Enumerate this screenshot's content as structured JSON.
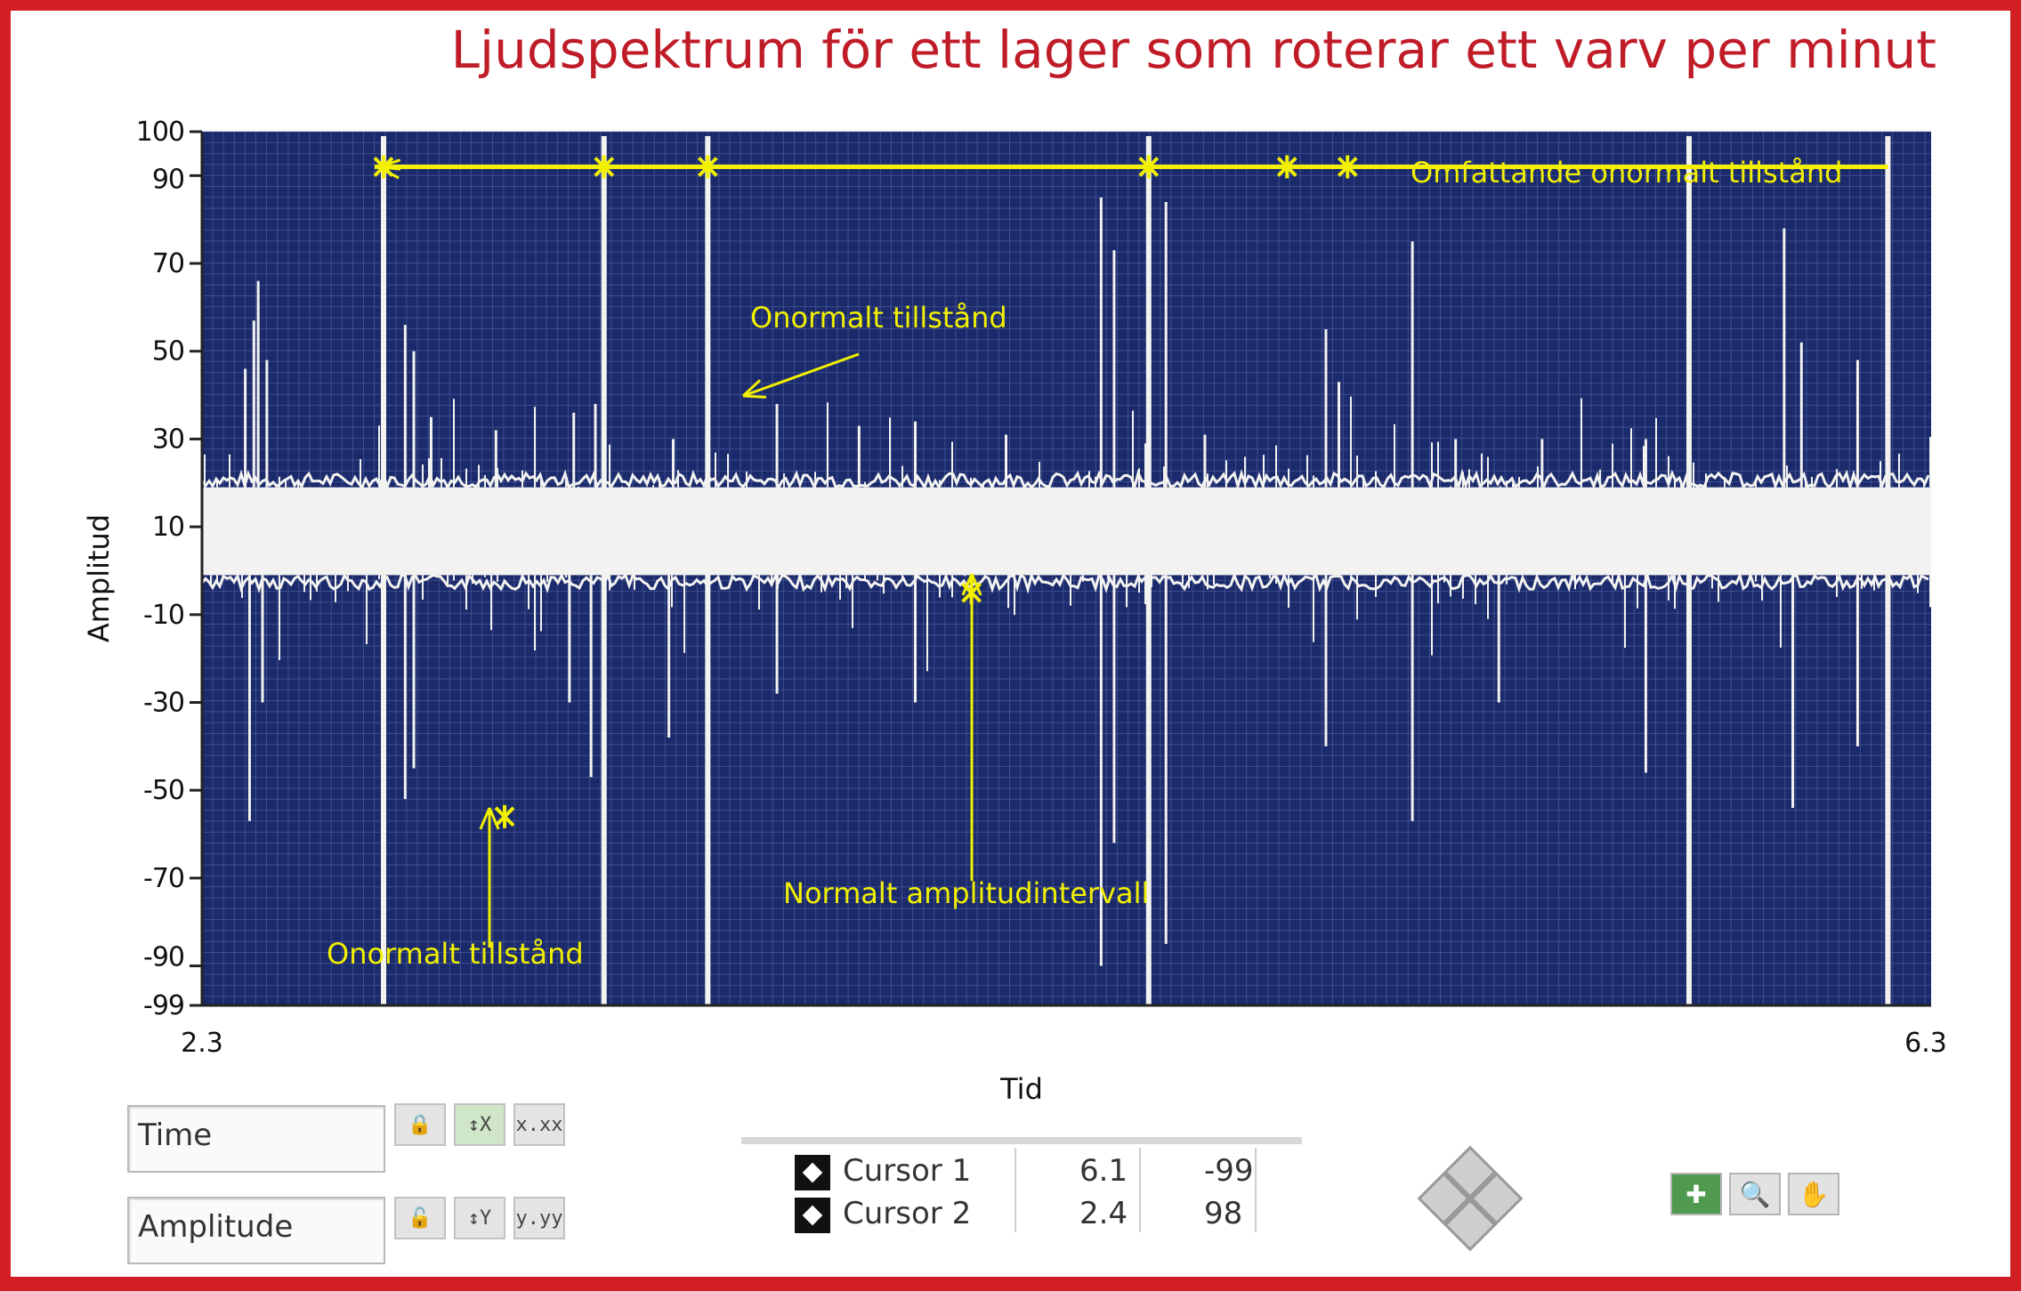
{
  "title": "Ljudspektrum för ett lager som roterar ett varv per minut",
  "chart_data": {
    "type": "line",
    "xlabel": "Tid",
    "ylabel": "Amplitud",
    "xlim": [
      2.3,
      6.3
    ],
    "ylim": [
      -99,
      100
    ],
    "x_ticks": [
      "2.3",
      "6.3"
    ],
    "y_ticks": [
      100,
      90,
      70,
      50,
      30,
      10,
      -10,
      -30,
      -50,
      -70,
      -90,
      -99
    ],
    "grid": true,
    "colors": {
      "plot_bg": "#1b2a6b",
      "grid": "#5a6aa8",
      "signal": "#f2f2f0",
      "annotation": "#f2f000"
    },
    "normal_band": [
      -1,
      19
    ],
    "full_spikes": [
      2.72,
      3.23,
      3.47,
      4.49,
      5.74,
      6.2
    ],
    "peak_spikes": [
      {
        "x": 2.4,
        "y": 46
      },
      {
        "x": 2.42,
        "y": 57
      },
      {
        "x": 2.43,
        "y": 66
      },
      {
        "x": 2.45,
        "y": 48
      },
      {
        "x": 2.77,
        "y": 56
      },
      {
        "x": 2.79,
        "y": 50
      },
      {
        "x": 2.83,
        "y": 35
      },
      {
        "x": 2.98,
        "y": 32
      },
      {
        "x": 3.16,
        "y": 36
      },
      {
        "x": 3.21,
        "y": 38
      },
      {
        "x": 3.39,
        "y": 30
      },
      {
        "x": 3.63,
        "y": 38
      },
      {
        "x": 3.82,
        "y": 33
      },
      {
        "x": 3.95,
        "y": 34
      },
      {
        "x": 4.16,
        "y": 31
      },
      {
        "x": 4.38,
        "y": 85
      },
      {
        "x": 4.41,
        "y": 73
      },
      {
        "x": 4.53,
        "y": 84
      },
      {
        "x": 4.62,
        "y": 31
      },
      {
        "x": 4.9,
        "y": 55
      },
      {
        "x": 4.93,
        "y": 43
      },
      {
        "x": 5.1,
        "y": 75
      },
      {
        "x": 5.2,
        "y": 30
      },
      {
        "x": 5.4,
        "y": 30
      },
      {
        "x": 5.64,
        "y": 30
      },
      {
        "x": 5.96,
        "y": 78
      },
      {
        "x": 6.0,
        "y": 52
      },
      {
        "x": 6.13,
        "y": 48
      }
    ],
    "trough_spikes": [
      {
        "x": 2.41,
        "y": -57
      },
      {
        "x": 2.44,
        "y": -30
      },
      {
        "x": 2.77,
        "y": -52
      },
      {
        "x": 2.79,
        "y": -45
      },
      {
        "x": 3.15,
        "y": -30
      },
      {
        "x": 3.2,
        "y": -47
      },
      {
        "x": 3.38,
        "y": -38
      },
      {
        "x": 3.63,
        "y": -28
      },
      {
        "x": 3.95,
        "y": -30
      },
      {
        "x": 4.38,
        "y": -90
      },
      {
        "x": 4.41,
        "y": -62
      },
      {
        "x": 4.53,
        "y": -85
      },
      {
        "x": 4.9,
        "y": -40
      },
      {
        "x": 5.1,
        "y": -57
      },
      {
        "x": 5.3,
        "y": -30
      },
      {
        "x": 5.64,
        "y": -46
      },
      {
        "x": 5.98,
        "y": -54
      },
      {
        "x": 6.13,
        "y": -40
      }
    ],
    "markers": [
      {
        "x": 2.72,
        "y": 92
      },
      {
        "x": 3.23,
        "y": 92
      },
      {
        "x": 3.47,
        "y": 92
      },
      {
        "x": 4.49,
        "y": 92
      },
      {
        "x": 4.81,
        "y": 92
      },
      {
        "x": 4.95,
        "y": 92
      },
      {
        "x": 3.0,
        "y": -56
      },
      {
        "x": 4.08,
        "y": -5
      }
    ],
    "annotations": [
      {
        "text": "Omfattande onormalt tillstånd"
      },
      {
        "text": "Onormalt tillstånd"
      },
      {
        "text": "Normalt amplitudintervall"
      },
      {
        "text": "Onormalt tillstånd"
      }
    ]
  },
  "controls": {
    "time_label": "Time",
    "amplitude_label": "Amplitude",
    "x_format": "x.xx",
    "y_format": "y.yy",
    "cursors": [
      {
        "name": "Cursor 1",
        "x": "6.1",
        "y": "-99"
      },
      {
        "name": "Cursor 2",
        "x": "2.4",
        "y": "98"
      }
    ]
  }
}
